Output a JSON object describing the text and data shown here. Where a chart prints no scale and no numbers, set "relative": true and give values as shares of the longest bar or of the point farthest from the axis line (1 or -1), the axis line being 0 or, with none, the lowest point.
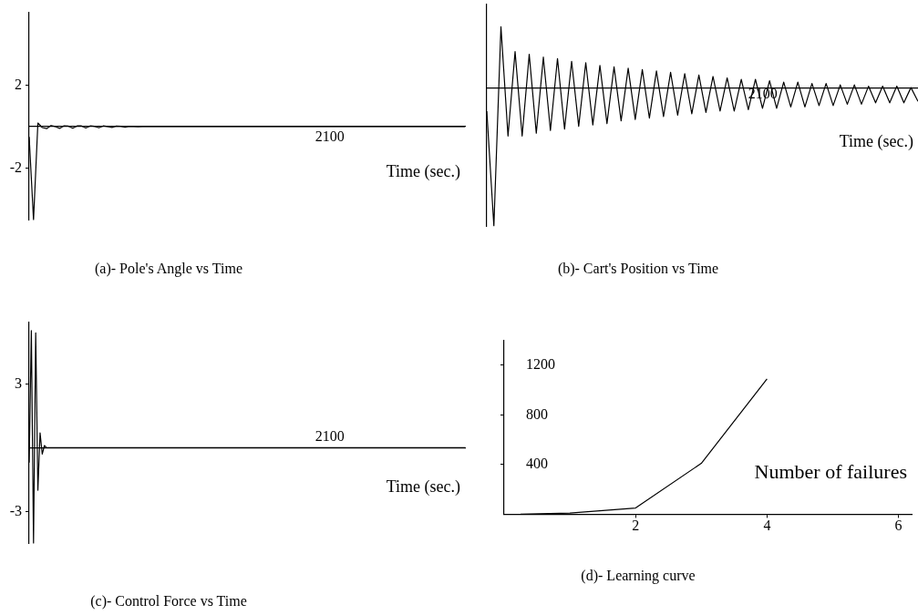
{
  "chart_data": [
    {
      "type": "line",
      "title": "(a)- Pole's Angle vs Time",
      "xlabel": "Time (sec.)",
      "grid": false,
      "legend": false,
      "annotations": [
        "2100"
      ],
      "categories": [
        null,
        null,
        null,
        null,
        null,
        null,
        null,
        null,
        null,
        null,
        null,
        null,
        null,
        null,
        null,
        null,
        null,
        null,
        null,
        null,
        null,
        null,
        null,
        null,
        null,
        null,
        null,
        null,
        null,
        null,
        null,
        null,
        null,
        null,
        null,
        null,
        null,
        null,
        null,
        null,
        null,
        null,
        null,
        null,
        null,
        null,
        null,
        null,
        null,
        null,
        null,
        null,
        null,
        null,
        null,
        null,
        null,
        null,
        null,
        null,
        null,
        null,
        null,
        null,
        null,
        null,
        null,
        null,
        null,
        null,
        null,
        null,
        null,
        null,
        null,
        null,
        null,
        null,
        null,
        null,
        null,
        null,
        null,
        null,
        null,
        null,
        null,
        null,
        null,
        null,
        null,
        null,
        null,
        null,
        null,
        null,
        null,
        null,
        null,
        null,
        null
      ],
      "series": [
        {
          "color": "#000000",
          "values": [
            -0.5,
            -4.5,
            0.17,
            -0.05,
            -0.1,
            0.05,
            0,
            -0.09,
            0.04,
            0.02,
            -0.08,
            0.03,
            0.03,
            -0.07,
            0.03,
            0.01,
            -0.06,
            0.03,
            0,
            -0.04,
            0.02,
            0.01,
            -0.03,
            0.01,
            0,
            -0.01,
            0,
            0,
            0,
            0,
            0,
            0,
            0,
            0,
            0,
            0,
            0,
            0,
            0,
            0,
            0,
            0,
            0,
            0,
            0,
            0,
            0,
            0,
            0,
            0,
            0,
            0,
            0,
            0,
            0,
            0,
            0,
            0,
            0,
            0,
            0,
            0,
            0,
            0,
            0,
            0,
            0,
            0,
            0,
            0,
            0,
            0,
            0,
            0,
            0,
            0,
            0,
            0,
            0,
            0,
            0,
            0,
            0,
            0,
            0,
            0,
            0,
            0,
            0,
            0,
            0,
            0,
            0,
            0,
            0,
            0,
            0,
            0,
            0,
            0,
            0
          ]
        }
      ],
      "ylim": [
        -4.5,
        5.5
      ],
      "yticks": [
        -2,
        2
      ]
    },
    {
      "type": "line",
      "title": "(b)- Cart's Position vs Time",
      "xlabel": "Time (sec.)",
      "grid": false,
      "legend": false,
      "relative": true,
      "annotations": [
        "2100"
      ],
      "categories": [
        null,
        null,
        null,
        null,
        null,
        null,
        null,
        null,
        null,
        null,
        null,
        null,
        null,
        null,
        null,
        null,
        null,
        null,
        null,
        null,
        null,
        null,
        null,
        null,
        null,
        null,
        null,
        null,
        null,
        null,
        null,
        null,
        null,
        null,
        null,
        null,
        null,
        null,
        null,
        null,
        null,
        null,
        null,
        null,
        null,
        null,
        null,
        null,
        null,
        null,
        null,
        null,
        null,
        null,
        null,
        null,
        null,
        null,
        null,
        null,
        null,
        null
      ],
      "series": [
        {
          "color": "#000000",
          "values": [
            -0.17,
            -1,
            0.44,
            -0.35,
            0.26,
            -0.35,
            0.24,
            -0.33,
            0.22,
            -0.31,
            0.21,
            -0.3,
            0.19,
            -0.28,
            0.18,
            -0.27,
            0.16,
            -0.26,
            0.15,
            -0.24,
            0.14,
            -0.23,
            0.13,
            -0.22,
            0.12,
            -0.21,
            0.11,
            -0.2,
            0.1,
            -0.19,
            0.09,
            -0.18,
            0.08,
            -0.17,
            0.07,
            -0.17,
            0.06,
            -0.16,
            0.06,
            -0.15,
            0.05,
            -0.15,
            0.04,
            -0.14,
            0.04,
            -0.14,
            0.03,
            -0.13,
            0.03,
            -0.13,
            0.02,
            -0.12,
            0.02,
            -0.12,
            0.01,
            -0.11,
            0.01,
            -0.11,
            0.01,
            -0.11,
            0,
            -0.1
          ]
        }
      ]
    },
    {
      "type": "line",
      "title": "(c)- Control Force vs Time",
      "xlabel": "Time (sec.)",
      "grid": false,
      "legend": false,
      "annotations": [
        "2100"
      ],
      "categories": [
        null,
        null,
        null,
        null,
        null,
        null,
        null,
        null,
        null,
        null,
        null,
        null,
        null,
        null,
        null,
        null,
        null,
        null,
        null,
        null,
        null,
        null,
        null,
        null,
        null,
        null,
        null,
        null,
        null,
        null,
        null,
        null,
        null,
        null,
        null,
        null,
        null,
        null,
        null,
        null,
        null,
        null,
        null,
        null,
        null,
        null,
        null,
        null,
        null,
        null,
        null,
        null,
        null,
        null,
        null,
        null,
        null,
        null,
        null,
        null,
        null,
        null,
        null,
        null,
        null,
        null,
        null,
        null,
        null,
        null,
        null,
        null,
        null,
        null,
        null,
        null,
        null,
        null,
        null,
        null,
        null,
        null,
        null,
        null,
        null,
        null,
        null,
        null,
        null,
        null,
        null,
        null,
        null,
        null,
        null,
        null,
        null,
        null,
        null,
        null,
        null,
        null,
        null,
        null,
        null,
        null,
        null,
        null,
        null,
        null,
        null,
        null,
        null,
        null,
        null,
        null,
        null,
        null,
        null,
        null,
        null,
        null,
        null,
        null,
        null,
        null,
        null,
        null,
        null,
        null,
        null,
        null,
        null,
        null,
        null,
        null,
        null,
        null,
        null,
        null,
        null,
        null,
        null,
        null,
        null,
        null,
        null,
        null,
        null,
        null,
        null,
        null,
        null,
        null,
        null,
        null,
        null,
        null,
        null,
        null,
        null,
        null,
        null,
        null,
        null,
        null,
        null,
        null,
        null,
        null,
        null,
        null,
        null,
        null,
        null,
        null,
        null,
        null,
        null,
        null,
        null,
        null,
        null,
        null,
        null,
        null,
        null,
        null,
        null,
        null,
        null,
        null,
        null,
        null,
        null,
        null,
        null,
        null,
        null,
        null,
        null
      ],
      "series": [
        {
          "color": "#000000",
          "values": [
            -0.7,
            5.5,
            -4.5,
            5.4,
            -2,
            0.7,
            -0.3,
            0.1,
            0,
            0,
            0,
            0,
            0,
            0,
            0,
            0,
            0,
            0,
            0,
            0,
            0,
            0,
            0,
            0,
            0,
            0,
            0,
            0,
            0,
            0,
            0,
            0,
            0,
            0,
            0,
            0,
            0,
            0,
            0,
            0,
            0,
            0,
            0,
            0,
            0,
            0,
            0,
            0,
            0,
            0,
            0,
            0,
            0,
            0,
            0,
            0,
            0,
            0,
            0,
            0,
            0,
            0,
            0,
            0,
            0,
            0,
            0,
            0,
            0,
            0,
            0,
            0,
            0,
            0,
            0,
            0,
            0,
            0,
            0,
            0,
            0,
            0,
            0,
            0,
            0,
            0,
            0,
            0,
            0,
            0,
            0,
            0,
            0,
            0,
            0,
            0,
            0,
            0,
            0,
            0,
            0,
            0,
            0,
            0,
            0,
            0,
            0,
            0,
            0,
            0,
            0,
            0,
            0,
            0,
            0,
            0,
            0,
            0,
            0,
            0,
            0,
            0,
            0,
            0,
            0,
            0,
            0,
            0,
            0,
            0,
            0,
            0,
            0,
            0,
            0,
            0,
            0,
            0,
            0,
            0,
            0,
            0,
            0,
            0,
            0,
            0,
            0,
            0,
            0,
            0,
            0,
            0,
            0,
            0,
            0,
            0,
            0,
            0,
            0,
            0,
            0,
            0,
            0,
            0,
            0,
            0,
            0,
            0,
            0,
            0,
            0,
            0,
            0,
            0,
            0,
            0,
            0,
            0,
            0,
            0,
            0,
            0,
            0,
            0,
            0,
            0,
            0,
            0,
            0,
            0,
            0,
            0,
            0,
            0,
            0,
            0,
            0,
            0,
            0,
            0,
            0
          ]
        }
      ],
      "ylim": [
        -4.5,
        5.9
      ],
      "yticks": [
        -3,
        3
      ]
    },
    {
      "type": "line",
      "title": "(d)- Learning curve",
      "xlabel": "Number of failures",
      "grid": false,
      "legend": false,
      "x": [
        0.25,
        1,
        2,
        3,
        4
      ],
      "series": [
        {
          "color": "#000000",
          "values": [
            0,
            10,
            50,
            410,
            1090
          ]
        }
      ],
      "xlim": [
        0,
        6.2
      ],
      "xticks": [
        2,
        4,
        6
      ],
      "ylim": [
        0,
        1400
      ],
      "yticks": [
        400,
        800,
        1200
      ]
    }
  ]
}
